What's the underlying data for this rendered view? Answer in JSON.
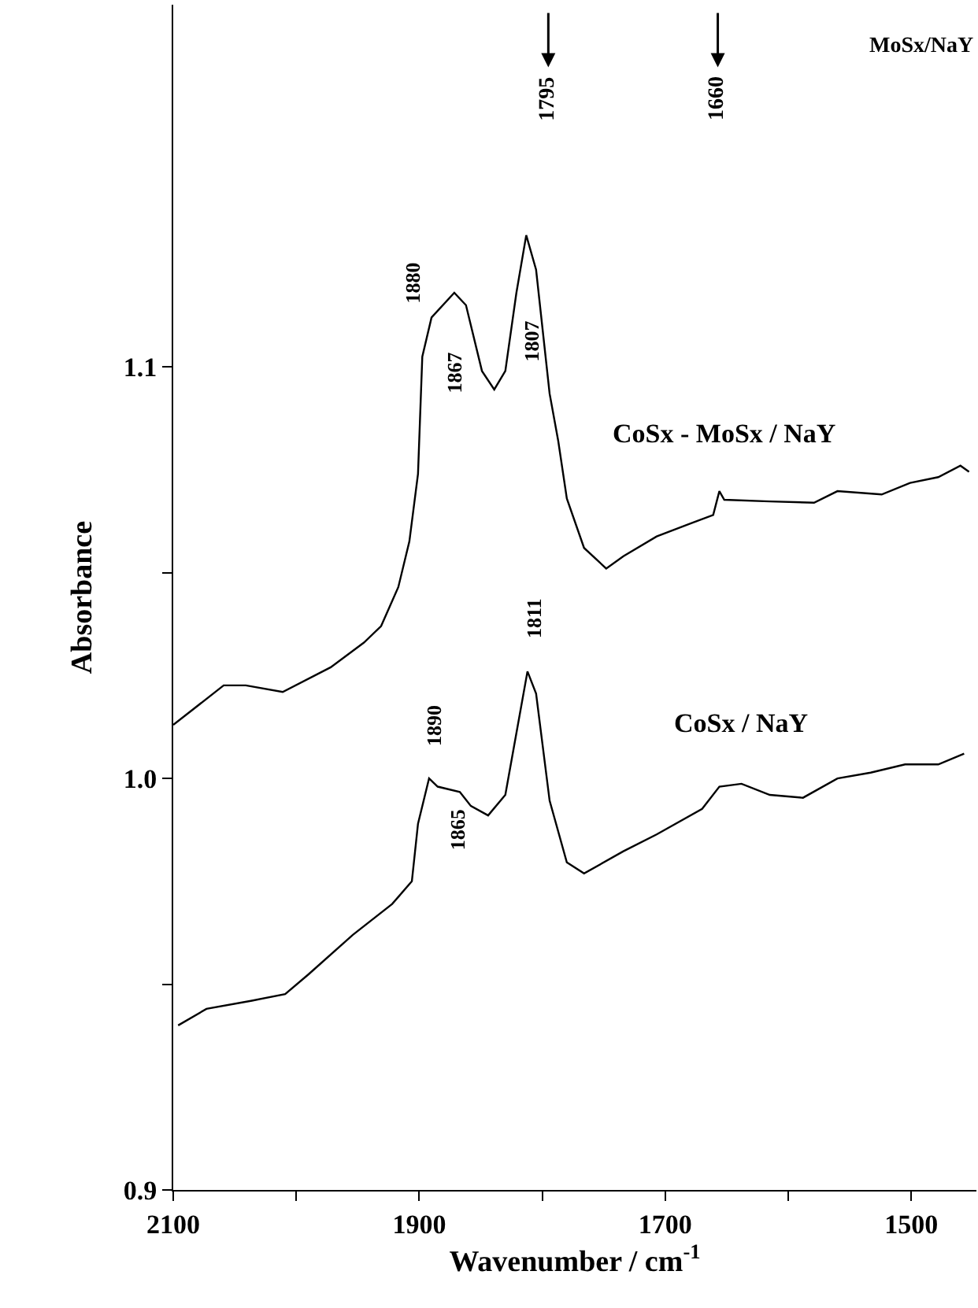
{
  "chart_data": {
    "type": "line",
    "xlabel": "Wavenumber / cm$^{-1}$",
    "ylabel": "Absorbance",
    "xlim": [
      2100,
      1447
    ],
    "ylim": [
      0.9,
      1.188
    ],
    "xticks": [
      2100,
      {
        "value": 2000,
        "label": null
      },
      1900,
      {
        "value": 1800,
        "label": null
      },
      1700,
      {
        "value": 1600,
        "label": null
      },
      1500
    ],
    "yticks": [
      0.9,
      {
        "value": 0.95,
        "label": null
      },
      {
        "value": 1.0,
        "label": "1.0"
      },
      {
        "value": 1.05,
        "label": null
      },
      1.1
    ],
    "legend": false,
    "marker": "none",
    "line_style": "solid",
    "series": [
      {
        "name": "CoSx - MoSx / NaY",
        "color": "#000000",
        "x": [
          2100,
          2059,
          2041,
          2011,
          1972,
          1945,
          1931,
          1917,
          1908,
          1901,
          1897.5,
          1890,
          1871.5,
          1862,
          1849,
          1839,
          1830,
          1821,
          1813,
          1805,
          1794,
          1787,
          1780,
          1766,
          1748,
          1734,
          1707,
          1679,
          1661,
          1656,
          1652,
          1615,
          1579,
          1560,
          1524,
          1501,
          1478,
          1460,
          1453
        ],
        "values": [
          1.013,
          1.0226,
          1.0226,
          1.021,
          1.027,
          1.033,
          1.037,
          1.0465,
          1.0576,
          1.074,
          1.1025,
          1.112,
          1.118,
          1.115,
          1.099,
          1.0945,
          1.099,
          1.118,
          1.132,
          1.1236,
          1.0935,
          1.082,
          1.068,
          1.056,
          1.051,
          1.054,
          1.0588,
          1.062,
          1.064,
          1.0698,
          1.0677,
          1.0673,
          1.067,
          1.0698,
          1.069,
          1.0718,
          1.0732,
          1.076,
          1.0745
        ]
      },
      {
        "name": "CoSx / NaY",
        "color": "#000000",
        "x": [
          2096,
          2073,
          2036,
          2009,
          1990,
          1954,
          1922,
          1906,
          1901,
          1892,
          1885,
          1867,
          1858,
          1844,
          1830,
          1821,
          1812,
          1805,
          1794,
          1780,
          1766,
          1734,
          1707,
          1670,
          1656,
          1638,
          1615,
          1588,
          1560,
          1533,
          1505,
          1478,
          1457
        ],
        "values": [
          0.94,
          0.944,
          0.946,
          0.9476,
          0.9524,
          0.962,
          0.9695,
          0.975,
          0.989,
          1.0,
          0.998,
          0.9967,
          0.9933,
          0.991,
          0.996,
          1.011,
          1.026,
          1.0206,
          0.9946,
          0.9796,
          0.9769,
          0.9823,
          0.9864,
          0.9926,
          0.998,
          0.9987,
          0.996,
          0.9953,
          1.0,
          1.0014,
          1.0034,
          1.0034,
          1.006
        ]
      }
    ],
    "annotations": [
      "1795",
      "1660",
      "MoSx/NaY",
      {
        "text": "1880",
        "x": 1890,
        "y": 1.112
      },
      {
        "text": "1867",
        "x": 1862,
        "y": 1.115
      },
      {
        "text": "1807",
        "x": 1805,
        "y": 1.1236
      },
      {
        "text": "1890",
        "x": 1892,
        "y": 1.0
      },
      {
        "text": "1865",
        "x": 1867,
        "y": 0.9967
      },
      {
        "text": "1811",
        "x": 1812,
        "y": 1.026
      }
    ]
  }
}
